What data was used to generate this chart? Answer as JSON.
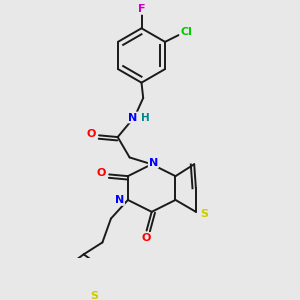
{
  "background_color": "#e8e8e8",
  "bond_color": "#1a1a1a",
  "atom_colors": {
    "N": "#0000ff",
    "O": "#ff0000",
    "S_thio": "#cccc00",
    "F": "#cc00cc",
    "Cl": "#00cc00",
    "H": "#008888"
  },
  "figsize": [
    3.0,
    3.0
  ],
  "dpi": 100
}
